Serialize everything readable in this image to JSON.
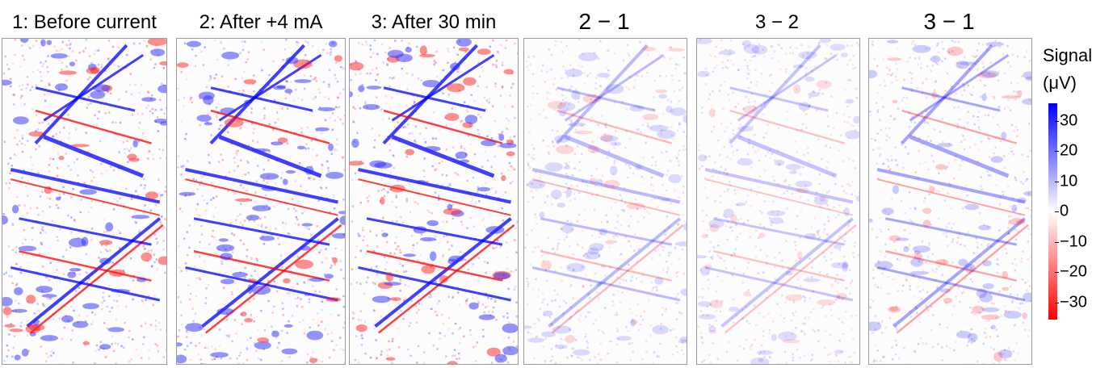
{
  "panels": [
    {
      "title": "1: Before current",
      "intensity": 1.0
    },
    {
      "title": "2: After +4 mA",
      "intensity": 1.0
    },
    {
      "title": "3: After 30 min",
      "intensity": 1.0
    },
    {
      "title": "2 − 1",
      "intensity": 0.35
    },
    {
      "title": "3 − 2",
      "intensity": 0.3
    },
    {
      "title": "3 − 1",
      "intensity": 0.45
    }
  ],
  "colorbar": {
    "title_line1": "Signal",
    "title_line2": "(μV)",
    "ticks": [
      "30",
      "20",
      "10",
      "0",
      "−10",
      "−20",
      "−30"
    ],
    "range": [
      -35,
      35
    ],
    "colors": {
      "high": "#0000ff",
      "mid": "#ffffff",
      "low": "#ff0000"
    }
  }
}
